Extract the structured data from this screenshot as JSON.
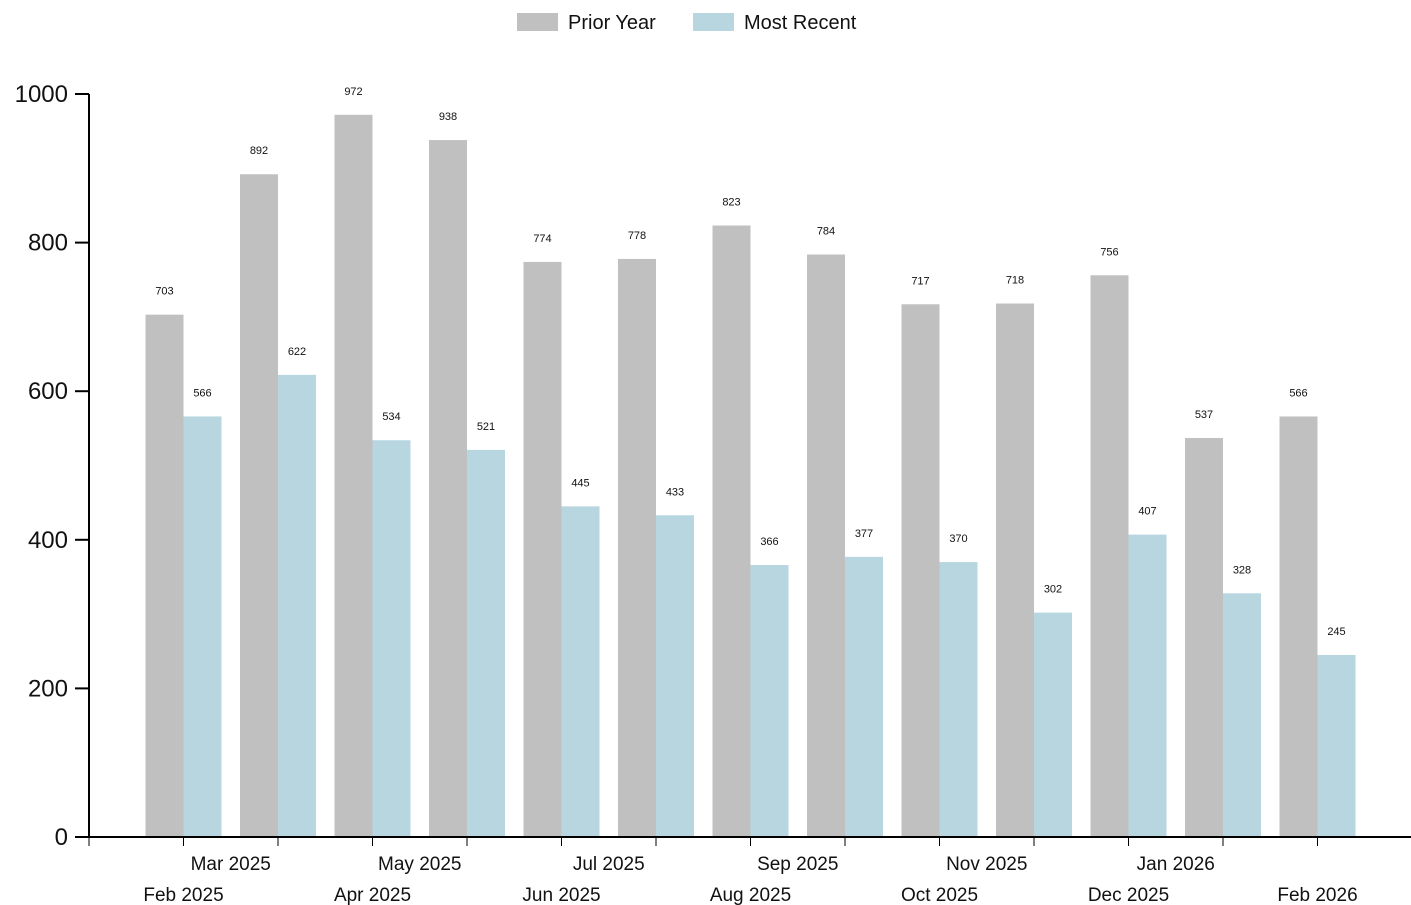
{
  "chart_data": {
    "type": "bar",
    "title": "",
    "xlabel": "",
    "ylabel": "",
    "ylim": [
      0,
      1000
    ],
    "yticks": [
      0,
      200,
      400,
      600,
      800,
      1000
    ],
    "grid": false,
    "legend_position": "top-center",
    "categories": [
      "Feb 2025",
      "Mar 2025",
      "Apr 2025",
      "May 2025",
      "Jun 2025",
      "Jul 2025",
      "Aug 2025",
      "Sep 2025",
      "Oct 2025",
      "Nov 2025",
      "Dec 2025",
      "Jan 2026",
      "Feb 2026"
    ],
    "series": [
      {
        "name": "Prior Year",
        "color": "#c0c0c0",
        "values": [
          703,
          892,
          972,
          938,
          774,
          778,
          823,
          784,
          717,
          718,
          756,
          537,
          566
        ]
      },
      {
        "name": "Most Recent",
        "color": "#b7d6e0",
        "values": [
          566,
          622,
          534,
          521,
          445,
          433,
          366,
          377,
          370,
          302,
          407,
          328,
          245
        ]
      }
    ]
  }
}
